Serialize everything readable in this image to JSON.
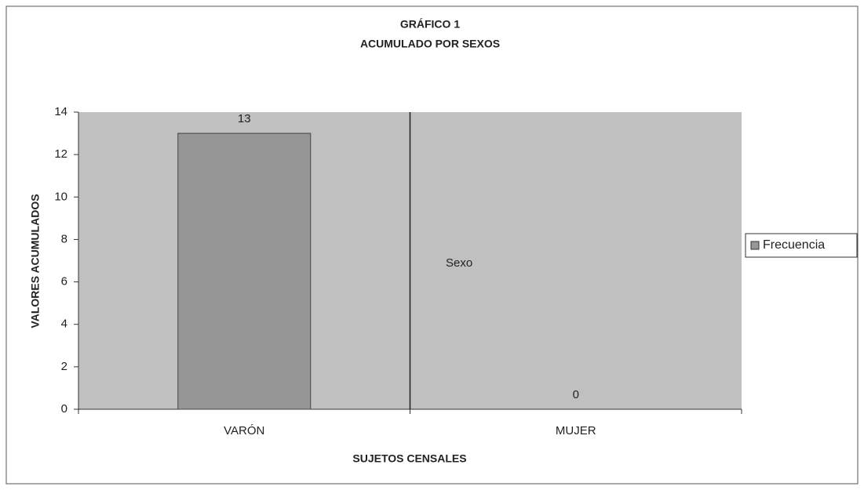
{
  "chart_data": {
    "type": "bar",
    "title": "GRÁFICO 1",
    "subtitle": "ACUMULADO POR SEXOS",
    "x_label": "SUJETOS CENSALES",
    "y_label": "VALORES ACUMULADOS",
    "annotations": [
      "Sexo"
    ],
    "categories": [
      "VARÓN",
      "MUJER"
    ],
    "series": [
      {
        "name": "Frecuencia",
        "color": "#969696",
        "values": [
          13,
          0
        ]
      }
    ],
    "ylim": [
      0,
      14
    ],
    "yticks": [
      0,
      2,
      4,
      6,
      8,
      10,
      12,
      14
    ],
    "plot_background": "#c0c0c0",
    "legend": "right"
  }
}
